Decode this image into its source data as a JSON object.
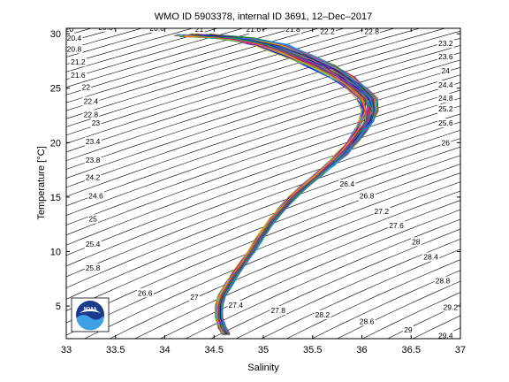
{
  "chart_data": {
    "type": "line",
    "title": "WMO ID 5903378, internal ID 3691, 12–Dec–2017",
    "xlabel": "Salinity",
    "ylabel": "Temperature [°C]",
    "xlim": [
      33,
      37
    ],
    "ylim": [
      2,
      30.5
    ],
    "xticks": [
      33,
      33.5,
      34,
      34.5,
      35,
      35.5,
      36,
      36.5,
      37
    ],
    "yticks": [
      5,
      10,
      15,
      20,
      25,
      30
    ],
    "xtick_labels": [
      "33",
      "33.5",
      "34",
      "34.5",
      "35",
      "35.5",
      "36",
      "36.5",
      "37"
    ],
    "ytick_labels": [
      "5",
      "10",
      "15",
      "20",
      "25",
      "30"
    ],
    "grid": false,
    "density_contours": {
      "color": "#000000",
      "min": 19.6,
      "step": 0.2,
      "max": 29.4,
      "labels": [
        {
          "text": "20",
          "s": 33.03,
          "t": 30.4
        },
        {
          "text": "20.4",
          "s": 33.08,
          "t": 29.6
        },
        {
          "text": "20.8",
          "s": 33.08,
          "t": 28.6
        },
        {
          "text": "21.2",
          "s": 33.12,
          "t": 27.4
        },
        {
          "text": "21.6",
          "s": 33.12,
          "t": 26.2
        },
        {
          "text": "22",
          "s": 33.2,
          "t": 25.1
        },
        {
          "text": "22.4",
          "s": 33.25,
          "t": 23.8
        },
        {
          "text": "22.8",
          "s": 33.25,
          "t": 22.6
        },
        {
          "text": "23",
          "s": 33.3,
          "t": 21.8
        },
        {
          "text": "23.4",
          "s": 33.27,
          "t": 20.1
        },
        {
          "text": "23.8",
          "s": 33.27,
          "t": 18.4
        },
        {
          "text": "24.2",
          "s": 33.27,
          "t": 16.8
        },
        {
          "text": "24.6",
          "s": 33.3,
          "t": 15.1
        },
        {
          "text": "25",
          "s": 33.27,
          "t": 13.0
        },
        {
          "text": "25.4",
          "s": 33.27,
          "t": 10.7
        },
        {
          "text": "25.8",
          "s": 33.27,
          "t": 8.5
        },
        {
          "text": "26.6",
          "s": 33.8,
          "t": 6.2
        },
        {
          "text": "27",
          "s": 34.3,
          "t": 5.8
        },
        {
          "text": "27.4",
          "s": 34.72,
          "t": 5.1
        },
        {
          "text": "27.8",
          "s": 35.15,
          "t": 4.6
        },
        {
          "text": "28.2",
          "s": 35.6,
          "t": 4.2
        },
        {
          "text": "28.6",
          "s": 36.05,
          "t": 3.6
        },
        {
          "text": "29",
          "s": 36.47,
          "t": 2.8
        },
        {
          "text": "29.4",
          "s": 36.85,
          "t": 2.3
        },
        {
          "text": "29.2",
          "s": 36.9,
          "t": 4.9
        },
        {
          "text": "28.8",
          "s": 36.82,
          "t": 7.3
        },
        {
          "text": "28.4",
          "s": 36.7,
          "t": 9.5
        },
        {
          "text": "28",
          "s": 36.55,
          "t": 10.9
        },
        {
          "text": "27.6",
          "s": 36.35,
          "t": 12.4
        },
        {
          "text": "27.2",
          "s": 36.2,
          "t": 13.7
        },
        {
          "text": "26.8",
          "s": 36.05,
          "t": 15.1
        },
        {
          "text": "26.4",
          "s": 35.85,
          "t": 16.2
        },
        {
          "text": "26",
          "s": 36.85,
          "t": 20.0
        },
        {
          "text": "25.6",
          "s": 36.85,
          "t": 21.8
        },
        {
          "text": "25.2",
          "s": 36.85,
          "t": 23.1
        },
        {
          "text": "24.8",
          "s": 36.85,
          "t": 24.1
        },
        {
          "text": "24.4",
          "s": 36.85,
          "t": 25.3
        },
        {
          "text": "24",
          "s": 36.85,
          "t": 26.6
        },
        {
          "text": "23.6",
          "s": 36.85,
          "t": 27.9
        },
        {
          "text": "23.2",
          "s": 36.85,
          "t": 29.1
        },
        {
          "text": "22.8",
          "s": 36.1,
          "t": 30.2
        },
        {
          "text": "22.2",
          "s": 35.65,
          "t": 30.2
        },
        {
          "text": "21.8",
          "s": 35.3,
          "t": 30.4
        },
        {
          "text": "21.6",
          "s": 34.9,
          "t": 30.4
        },
        {
          "text": "21",
          "s": 34.35,
          "t": 30.4
        },
        {
          "text": "20.6",
          "s": 33.92,
          "t": 30.5
        },
        {
          "text": "20.8",
          "s": 33.4,
          "t": 30.6
        }
      ]
    },
    "profile_envelope": {
      "pressure_relation": "temperature decreases with depth",
      "points": [
        {
          "s": 34.62,
          "t": 2.4
        },
        {
          "s": 34.58,
          "t": 3.0
        },
        {
          "s": 34.55,
          "t": 4.0
        },
        {
          "s": 34.55,
          "t": 5.0
        },
        {
          "s": 34.58,
          "t": 6.0
        },
        {
          "s": 34.65,
          "t": 7.0
        },
        {
          "s": 34.72,
          "t": 8.0
        },
        {
          "s": 34.8,
          "t": 9.0
        },
        {
          "s": 34.88,
          "t": 10.0
        },
        {
          "s": 34.95,
          "t": 11.0
        },
        {
          "s": 35.02,
          "t": 12.0
        },
        {
          "s": 35.1,
          "t": 13.0
        },
        {
          "s": 35.2,
          "t": 14.0
        },
        {
          "s": 35.3,
          "t": 15.0
        },
        {
          "s": 35.42,
          "t": 16.0
        },
        {
          "s": 35.55,
          "t": 17.0
        },
        {
          "s": 35.68,
          "t": 18.0
        },
        {
          "s": 35.8,
          "t": 19.0
        },
        {
          "s": 35.9,
          "t": 20.0
        },
        {
          "s": 35.98,
          "t": 21.0
        },
        {
          "s": 36.05,
          "t": 22.0
        },
        {
          "s": 36.08,
          "t": 23.0
        },
        {
          "s": 36.05,
          "t": 24.0
        },
        {
          "s": 35.95,
          "t": 25.0
        },
        {
          "s": 35.8,
          "t": 26.0
        },
        {
          "s": 35.6,
          "t": 27.0
        },
        {
          "s": 35.35,
          "t": 28.0
        },
        {
          "s": 35.05,
          "t": 29.0
        },
        {
          "s": 34.7,
          "t": 29.6
        },
        {
          "s": 34.3,
          "t": 30.0
        }
      ],
      "profile_count": 60
    },
    "logo": {
      "text": "NOAA",
      "colors": [
        "#1b3a8a",
        "#3fa0e8",
        "#ffffff"
      ]
    }
  }
}
